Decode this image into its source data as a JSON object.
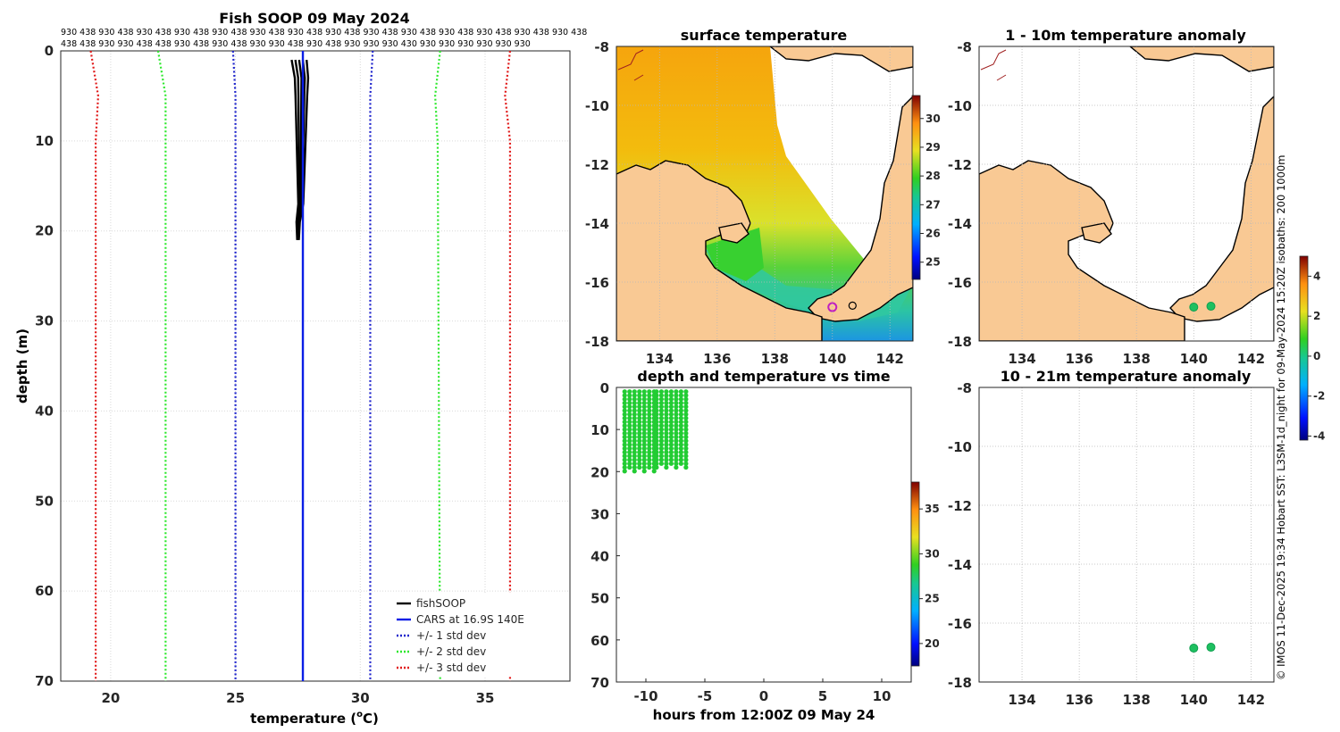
{
  "colors": {
    "land": "#f9c994",
    "fish_line": "#000000",
    "cars_line": "#0a1ee6",
    "std1": "#1f24cc",
    "std2": "#2ee82e",
    "std3": "#e11a1a",
    "text": "#262626",
    "grid": "#d9d9d9"
  },
  "chart_data": [
    {
      "id": "profile",
      "type": "line",
      "title": "Fish SOOP 09 May 2024",
      "xlabel": "temperature (°C)",
      "xlabel_main": "temperature (",
      "xlabel_sup": "o",
      "xlabel_end": "C)",
      "ylabel": "depth (m)",
      "xlim": [
        18,
        38.4
      ],
      "ylim": [
        70,
        0
      ],
      "xticks": [
        "20",
        "25",
        "30",
        "35"
      ],
      "yticks": [
        "0",
        "10",
        "20",
        "30",
        "40",
        "50",
        "60",
        "70"
      ],
      "top_labels_row1": "930 438 930 438 930 438 930 438 930 438 930 438 930 438 930 438 930 438 930 438 930 438 930 438 930 438 930 438",
      "top_labels_row2": "438 438 930 930 438 438 930 438 930 438 930 930 438 930 438 930 930 930 430 930 930 930 930 930 930",
      "series": [
        {
          "name": "fishSOOP",
          "style": "solid",
          "depth": [
            1,
            3,
            5,
            8,
            11,
            14,
            17,
            19,
            21
          ],
          "temp": [
            27.5,
            27.6,
            27.6,
            27.6,
            27.6,
            27.6,
            27.6,
            27.5,
            27.5
          ]
        },
        {
          "name": "CARS at 16.9S 140E",
          "style": "solid",
          "depth": [
            0,
            70
          ],
          "temp": [
            27.7,
            27.7
          ]
        },
        {
          "name": "+/- 1 std dev",
          "style": "dotted",
          "depth": [
            0,
            5,
            10,
            70
          ],
          "lower": [
            24.9,
            25.0,
            25.0,
            25.0
          ],
          "upper": [
            30.5,
            30.4,
            30.4,
            30.4
          ]
        },
        {
          "name": "+/- 2 std dev",
          "style": "dotted",
          "depth": [
            0,
            5,
            10,
            70
          ],
          "lower": [
            21.9,
            22.2,
            22.2,
            22.2
          ],
          "upper": [
            33.2,
            33.0,
            33.1,
            33.2
          ]
        },
        {
          "name": "+/- 3 std dev",
          "style": "dotted",
          "depth": [
            0,
            5,
            10,
            70
          ],
          "lower": [
            19.2,
            19.5,
            19.4,
            19.4
          ],
          "upper": [
            36.0,
            35.8,
            36.0,
            36.0
          ]
        }
      ],
      "legend": "bottom-right"
    },
    {
      "id": "sst",
      "type": "heatmap",
      "title": "surface temperature",
      "xlim": [
        132.5,
        142.8
      ],
      "ylim": [
        -18,
        -8
      ],
      "xticks": [
        "134",
        "136",
        "138",
        "140",
        "142"
      ],
      "yticks": [
        "-8",
        "-10",
        "-12",
        "-14",
        "-16",
        "-18"
      ],
      "colorbar": {
        "min": 24.4,
        "max": 30.8,
        "ticks": [
          "25",
          "26",
          "27",
          "28",
          "29",
          "30"
        ]
      },
      "markers": [
        {
          "lon": 140.0,
          "lat": -16.85,
          "color": "#c020c0"
        },
        {
          "lon": 140.7,
          "lat": -16.8,
          "color": "#000000"
        }
      ]
    },
    {
      "id": "anom1",
      "type": "heatmap",
      "title": "1 - 10m temperature anomaly",
      "xlim": [
        132.5,
        142.8
      ],
      "ylim": [
        -18,
        -8
      ],
      "xticks": [
        "134",
        "136",
        "138",
        "140",
        "142"
      ],
      "yticks": [
        "-8",
        "-10",
        "-12",
        "-14",
        "-16",
        "-18"
      ],
      "points": [
        {
          "lon": 140.0,
          "lat": -16.85,
          "value": 0
        },
        {
          "lon": 140.6,
          "lat": -16.82,
          "value": 0
        }
      ],
      "colorbar": {
        "min": -4.2,
        "max": 5,
        "ticks": [
          "4",
          "2",
          "0",
          "-2",
          "-4"
        ]
      }
    },
    {
      "id": "anom2",
      "type": "heatmap",
      "title": "10 - 21m temperature anomaly",
      "xlim": [
        132.5,
        142.8
      ],
      "ylim": [
        -18,
        -8
      ],
      "xticks": [
        "134",
        "136",
        "138",
        "140",
        "142"
      ],
      "yticks": [
        "-8",
        "-10",
        "-12",
        "-14",
        "-16",
        "-18"
      ],
      "points": [
        {
          "lon": 140.0,
          "lat": -16.85,
          "value": 0
        },
        {
          "lon": 140.6,
          "lat": -16.82,
          "value": 0
        }
      ]
    },
    {
      "id": "time",
      "type": "scatter",
      "title": "depth and temperature vs time",
      "xlabel": "hours from 12:00Z 09 May 24",
      "xlim": [
        -12.5,
        12.5
      ],
      "ylim": [
        70,
        0
      ],
      "xticks": [
        "-10",
        "-5",
        "0",
        "5",
        "10"
      ],
      "yticks": [
        "0",
        "10",
        "20",
        "30",
        "40",
        "50",
        "60",
        "70"
      ],
      "groups": [
        {
          "x_start": -11.8,
          "x_end": -9.3,
          "depth_max": 20.5
        },
        {
          "x_start": -9.1,
          "x_end": -6.6,
          "depth_max": 19.5
        }
      ],
      "point_color": "#22cc33",
      "colorbar": {
        "min": 17.5,
        "max": 38,
        "ticks": [
          "35",
          "30",
          "25",
          "20"
        ]
      }
    }
  ],
  "side_text": "© IMOS 11-Dec-2025 19:34 Hobart SST: L3SM-1d_night for 09-May-2024 15:20Z  isobaths: 200  1000m"
}
